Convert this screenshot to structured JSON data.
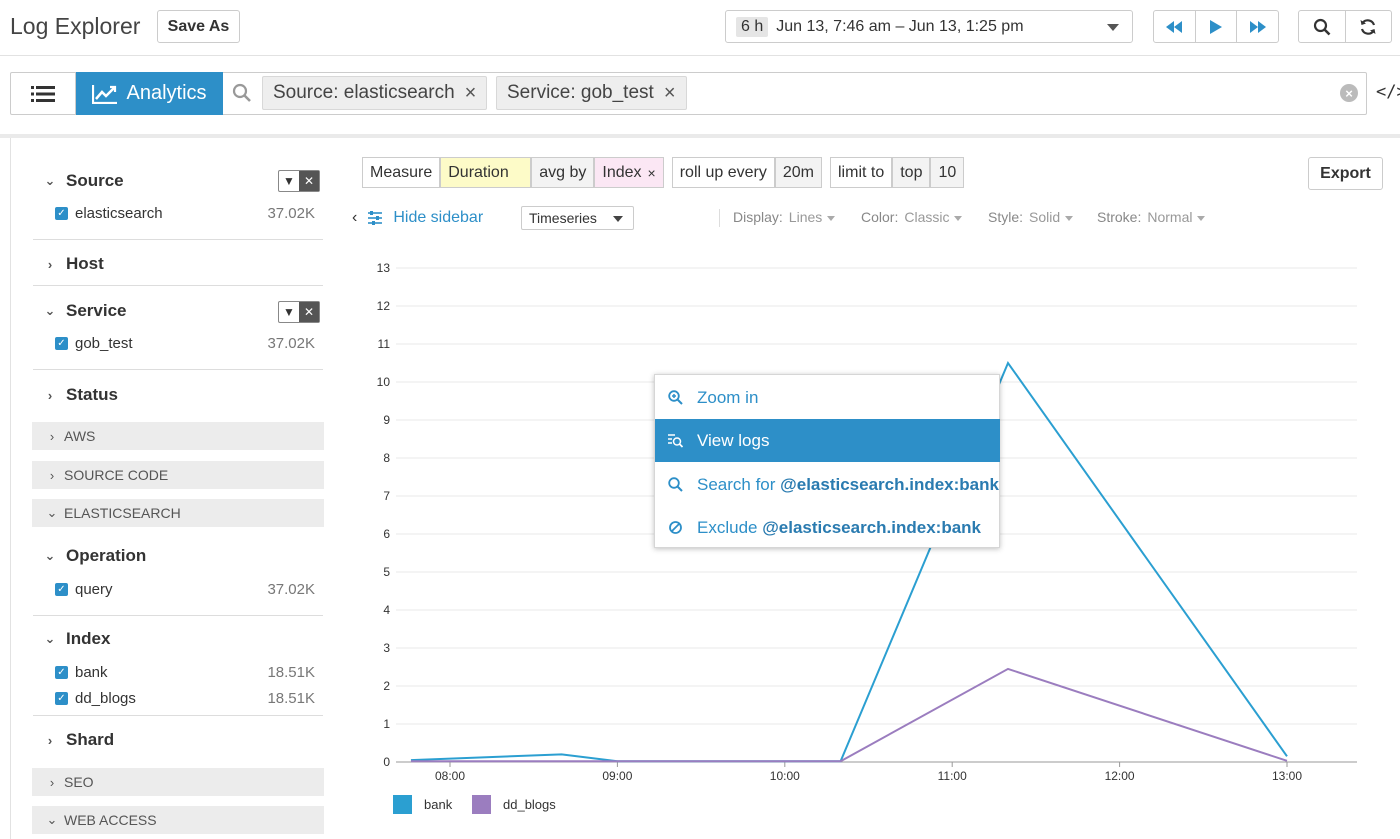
{
  "topbar": {
    "title": "Log Explorer",
    "save_as": "Save As",
    "time_badge": "6 h",
    "time_range": "Jun 13, 7:46 am – Jun 13, 1:25 pm"
  },
  "search": {
    "view_analytics": "Analytics",
    "pills": [
      {
        "label": "Source: elasticsearch"
      },
      {
        "label": "Service: gob_test"
      }
    ]
  },
  "sidebar": {
    "facets": [
      {
        "title": "Source",
        "values": [
          {
            "label": "elasticsearch",
            "count": "37.02K"
          }
        ]
      },
      {
        "title": "Host"
      },
      {
        "title": "Service",
        "values": [
          {
            "label": "gob_test",
            "count": "37.02K"
          }
        ]
      },
      {
        "title": "Status"
      },
      {
        "title": "Operation",
        "values": [
          {
            "label": "query",
            "count": "37.02K"
          }
        ]
      },
      {
        "title": "Index",
        "values": [
          {
            "label": "bank",
            "count": "18.51K"
          },
          {
            "label": "dd_blogs",
            "count": "18.51K"
          }
        ]
      },
      {
        "title": "Shard"
      }
    ],
    "groups": [
      "AWS",
      "SOURCE CODE",
      "ELASTICSEARCH",
      "SEO",
      "WEB ACCESS"
    ]
  },
  "query": {
    "measure": "Measure",
    "duration": "Duration",
    "avg_by": "avg by",
    "index": "Index",
    "roll_up": "roll up every",
    "interval": "20m",
    "limit_to": "limit to",
    "top": "top",
    "limit": "10",
    "export": "Export"
  },
  "controls": {
    "hide_sidebar": "Hide sidebar",
    "viz_type": "Timeseries",
    "display_label": "Display:",
    "display_value": "Lines",
    "color_label": "Color:",
    "color_value": "Classic",
    "style_label": "Style:",
    "style_value": "Solid",
    "stroke_label": "Stroke:",
    "stroke_value": "Normal"
  },
  "context_menu": {
    "zoom_in": "Zoom in",
    "view_logs": "View logs",
    "search_for": "Search for",
    "exclude": "Exclude",
    "facet_query": "@elasticsearch.index:bank"
  },
  "colors": {
    "accent": "#2d8fc8",
    "bank": "#2b9fd1",
    "dd_blogs": "#9b7dbf"
  },
  "chart_data": {
    "type": "line",
    "x": [
      "07:46",
      "08:40",
      "09:00",
      "10:20",
      "11:20",
      "13:00"
    ],
    "series": [
      {
        "name": "bank",
        "values": [
          0.05,
          0.2,
          0.02,
          0.02,
          10.5,
          0.15
        ]
      },
      {
        "name": "dd_blogs",
        "values": [
          0.02,
          0.02,
          0.02,
          0.02,
          2.45,
          0.03
        ]
      }
    ],
    "x_ticks": [
      "08:00",
      "09:00",
      "10:00",
      "11:00",
      "12:00",
      "13:00"
    ],
    "y_ticks": [
      "0",
      "1",
      "2",
      "3",
      "4",
      "5",
      "6",
      "7",
      "8",
      "9",
      "10",
      "11",
      "12",
      "13"
    ],
    "ylim": [
      0,
      13
    ],
    "grid": true,
    "legend": "bottom-left"
  }
}
